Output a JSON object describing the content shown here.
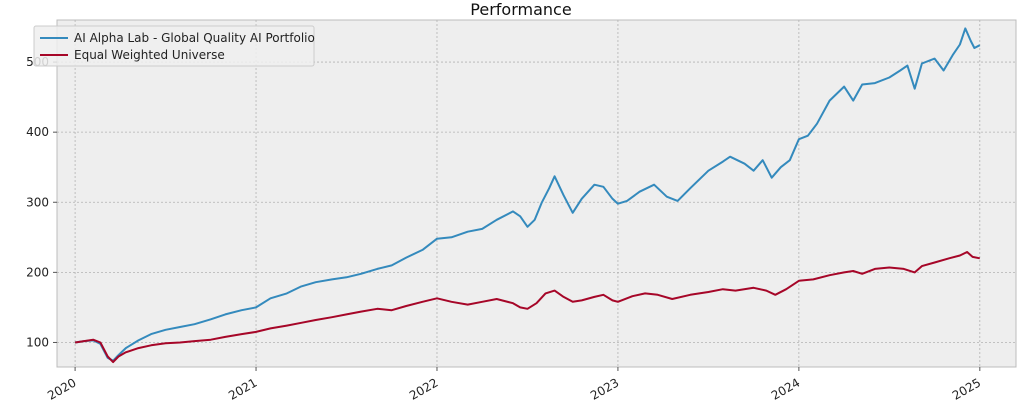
{
  "chart_data": {
    "type": "line",
    "title": "Performance",
    "xlabel": "",
    "ylabel": "",
    "x_ticks": [
      "2020",
      "2021",
      "2022",
      "2023",
      "2024",
      "2025"
    ],
    "y_ticks": [
      100,
      200,
      300,
      400,
      500
    ],
    "xlim": [
      2019.9,
      2025.2
    ],
    "ylim": [
      65,
      560
    ],
    "grid": true,
    "legend_position": "top-left",
    "series": [
      {
        "name": "AI Alpha Lab - Global Quality AI Portfolio",
        "color": "#348abd",
        "points": [
          [
            2020.0,
            100
          ],
          [
            2020.05,
            102
          ],
          [
            2020.1,
            103
          ],
          [
            2020.14,
            98
          ],
          [
            2020.18,
            78
          ],
          [
            2020.21,
            74
          ],
          [
            2020.24,
            82
          ],
          [
            2020.28,
            92
          ],
          [
            2020.35,
            103
          ],
          [
            2020.42,
            112
          ],
          [
            2020.5,
            118
          ],
          [
            2020.58,
            122
          ],
          [
            2020.66,
            126
          ],
          [
            2020.75,
            133
          ],
          [
            2020.83,
            140
          ],
          [
            2020.92,
            146
          ],
          [
            2021.0,
            150
          ],
          [
            2021.08,
            163
          ],
          [
            2021.17,
            170
          ],
          [
            2021.25,
            180
          ],
          [
            2021.33,
            186
          ],
          [
            2021.42,
            190
          ],
          [
            2021.5,
            193
          ],
          [
            2021.58,
            198
          ],
          [
            2021.67,
            205
          ],
          [
            2021.75,
            210
          ],
          [
            2021.83,
            221
          ],
          [
            2021.92,
            232
          ],
          [
            2022.0,
            248
          ],
          [
            2022.08,
            250
          ],
          [
            2022.17,
            258
          ],
          [
            2022.25,
            262
          ],
          [
            2022.33,
            275
          ],
          [
            2022.42,
            287
          ],
          [
            2022.46,
            280
          ],
          [
            2022.5,
            265
          ],
          [
            2022.54,
            275
          ],
          [
            2022.58,
            300
          ],
          [
            2022.62,
            320
          ],
          [
            2022.65,
            337
          ],
          [
            2022.7,
            310
          ],
          [
            2022.75,
            285
          ],
          [
            2022.8,
            305
          ],
          [
            2022.87,
            325
          ],
          [
            2022.92,
            322
          ],
          [
            2022.97,
            305
          ],
          [
            2023.0,
            298
          ],
          [
            2023.05,
            302
          ],
          [
            2023.12,
            315
          ],
          [
            2023.2,
            325
          ],
          [
            2023.27,
            308
          ],
          [
            2023.33,
            302
          ],
          [
            2023.4,
            320
          ],
          [
            2023.5,
            345
          ],
          [
            2023.58,
            358
          ],
          [
            2023.62,
            365
          ],
          [
            2023.7,
            355
          ],
          [
            2023.75,
            345
          ],
          [
            2023.8,
            360
          ],
          [
            2023.85,
            335
          ],
          [
            2023.9,
            350
          ],
          [
            2023.95,
            360
          ],
          [
            2024.0,
            390
          ],
          [
            2024.05,
            395
          ],
          [
            2024.1,
            412
          ],
          [
            2024.17,
            445
          ],
          [
            2024.25,
            465
          ],
          [
            2024.3,
            445
          ],
          [
            2024.35,
            468
          ],
          [
            2024.42,
            470
          ],
          [
            2024.5,
            478
          ],
          [
            2024.56,
            488
          ],
          [
            2024.6,
            495
          ],
          [
            2024.64,
            462
          ],
          [
            2024.68,
            498
          ],
          [
            2024.75,
            505
          ],
          [
            2024.8,
            488
          ],
          [
            2024.85,
            510
          ],
          [
            2024.89,
            525
          ],
          [
            2024.92,
            548
          ],
          [
            2024.95,
            530
          ],
          [
            2024.97,
            520
          ],
          [
            2025.0,
            524
          ]
        ]
      },
      {
        "name": "Equal Weighted Universe",
        "color": "#a60628",
        "points": [
          [
            2020.0,
            100
          ],
          [
            2020.05,
            102
          ],
          [
            2020.1,
            104
          ],
          [
            2020.14,
            100
          ],
          [
            2020.18,
            80
          ],
          [
            2020.21,
            72
          ],
          [
            2020.24,
            80
          ],
          [
            2020.28,
            86
          ],
          [
            2020.35,
            92
          ],
          [
            2020.42,
            96
          ],
          [
            2020.5,
            99
          ],
          [
            2020.58,
            100
          ],
          [
            2020.66,
            102
          ],
          [
            2020.75,
            104
          ],
          [
            2020.83,
            108
          ],
          [
            2020.92,
            112
          ],
          [
            2021.0,
            115
          ],
          [
            2021.08,
            120
          ],
          [
            2021.17,
            124
          ],
          [
            2021.25,
            128
          ],
          [
            2021.33,
            132
          ],
          [
            2021.42,
            136
          ],
          [
            2021.5,
            140
          ],
          [
            2021.58,
            144
          ],
          [
            2021.67,
            148
          ],
          [
            2021.75,
            146
          ],
          [
            2021.83,
            152
          ],
          [
            2021.92,
            158
          ],
          [
            2022.0,
            163
          ],
          [
            2022.08,
            158
          ],
          [
            2022.17,
            154
          ],
          [
            2022.25,
            158
          ],
          [
            2022.33,
            162
          ],
          [
            2022.42,
            156
          ],
          [
            2022.46,
            150
          ],
          [
            2022.5,
            148
          ],
          [
            2022.55,
            156
          ],
          [
            2022.6,
            170
          ],
          [
            2022.65,
            174
          ],
          [
            2022.7,
            165
          ],
          [
            2022.75,
            158
          ],
          [
            2022.8,
            160
          ],
          [
            2022.87,
            165
          ],
          [
            2022.92,
            168
          ],
          [
            2022.97,
            160
          ],
          [
            2023.0,
            158
          ],
          [
            2023.08,
            166
          ],
          [
            2023.15,
            170
          ],
          [
            2023.22,
            168
          ],
          [
            2023.3,
            162
          ],
          [
            2023.4,
            168
          ],
          [
            2023.5,
            172
          ],
          [
            2023.58,
            176
          ],
          [
            2023.65,
            174
          ],
          [
            2023.75,
            178
          ],
          [
            2023.82,
            174
          ],
          [
            2023.87,
            168
          ],
          [
            2023.93,
            176
          ],
          [
            2024.0,
            188
          ],
          [
            2024.08,
            190
          ],
          [
            2024.17,
            196
          ],
          [
            2024.25,
            200
          ],
          [
            2024.3,
            202
          ],
          [
            2024.35,
            198
          ],
          [
            2024.42,
            205
          ],
          [
            2024.5,
            207
          ],
          [
            2024.58,
            205
          ],
          [
            2024.64,
            200
          ],
          [
            2024.68,
            209
          ],
          [
            2024.75,
            214
          ],
          [
            2024.83,
            220
          ],
          [
            2024.89,
            224
          ],
          [
            2024.93,
            229
          ],
          [
            2024.96,
            222
          ],
          [
            2025.0,
            220
          ]
        ]
      }
    ]
  }
}
